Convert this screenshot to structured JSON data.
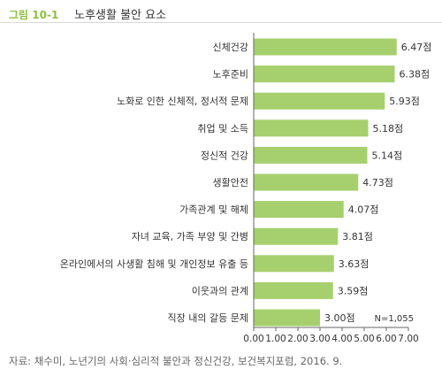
{
  "figure": {
    "label": "그림 10-1",
    "title": "노후생활 불안 요소"
  },
  "source": "자료: 채수미, 노년기의 사회·심리적 불안과 정신건강, 보건복지포럼, 2016. 9.",
  "colors": {
    "bar": "#a6d06d",
    "accent": "#8fbf3f",
    "axis": "#666666"
  },
  "chart_data": {
    "type": "bar",
    "orientation": "horizontal",
    "title": "노후생활 불안 요소",
    "categories": [
      "신체건강",
      "노후준비",
      "노화로 인한 신체적, 정서적 문제",
      "취업 및 소득",
      "정신적 건강",
      "생활안전",
      "가족관계 및 해체",
      "자녀 교육, 가족 부양 및 간병",
      "온라인에서의 사생활 침해 및 개인정보 유출 등",
      "이웃과의 관계",
      "직장 내의 갈등 문제"
    ],
    "values": [
      6.47,
      6.38,
      5.93,
      5.18,
      5.14,
      4.73,
      4.07,
      3.81,
      3.63,
      3.59,
      3.0
    ],
    "value_labels": [
      "6.47점",
      "6.38점",
      "5.93점",
      "5.18점",
      "5.14점",
      "4.73점",
      "4.07점",
      "3.81점",
      "3.63점",
      "3.59점",
      "3.00점"
    ],
    "xlim": [
      0,
      7
    ],
    "xticks": [
      "0.00",
      "1.00",
      "2.00",
      "3.00",
      "4.00",
      "5.00",
      "6.00",
      "7.00"
    ],
    "annotation": "N=1,055",
    "grid": false
  }
}
